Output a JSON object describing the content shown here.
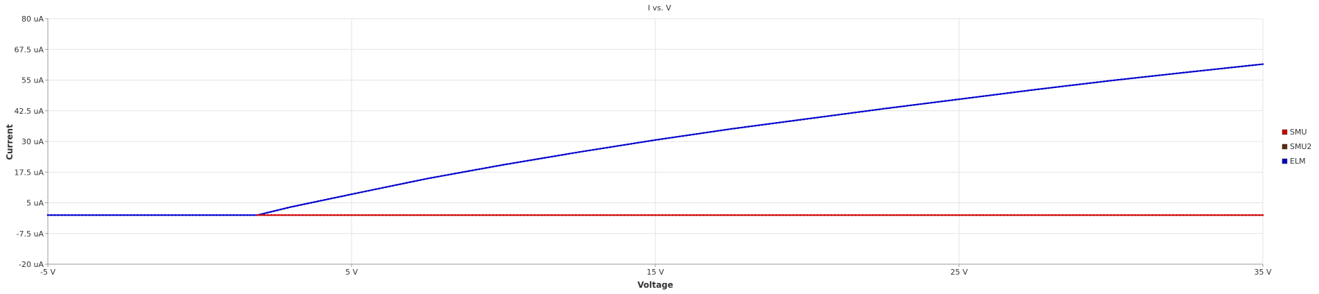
{
  "chart_data": {
    "type": "line",
    "title": "I vs. V",
    "xlabel": "Voltage",
    "ylabel": "Current",
    "xlim": [
      -5,
      35
    ],
    "ylim": [
      -20,
      80
    ],
    "x_ticks": [
      {
        "value": -5,
        "label": "-5 V"
      },
      {
        "value": 5,
        "label": "5 V"
      },
      {
        "value": 15,
        "label": "15 V"
      },
      {
        "value": 25,
        "label": "25 V"
      },
      {
        "value": 35,
        "label": "35 V"
      }
    ],
    "y_ticks": [
      {
        "value": 80,
        "label": "80 uA"
      },
      {
        "value": 67.5,
        "label": "67.5 uA"
      },
      {
        "value": 55,
        "label": "55 uA"
      },
      {
        "value": 42.5,
        "label": "42.5 uA"
      },
      {
        "value": 30,
        "label": "30 uA"
      },
      {
        "value": 17.5,
        "label": "17.5 uA"
      },
      {
        "value": 5,
        "label": "5 uA"
      },
      {
        "value": -7.5,
        "label": "-7.5 uA"
      },
      {
        "value": -20,
        "label": "-20 uA"
      }
    ],
    "grid": true,
    "legend_position": "right",
    "series": [
      {
        "name": "SMU",
        "color": "#cc0000",
        "x": [
          1.9,
          5,
          10,
          15,
          20,
          25,
          30,
          35
        ],
        "y": [
          0,
          0,
          0,
          0,
          0,
          0,
          0,
          0
        ]
      },
      {
        "name": "SMU2",
        "color": "#5a2a0a",
        "x": [],
        "y": []
      },
      {
        "name": "ELM",
        "color": "#0000cc",
        "x": [
          -5,
          0,
          1.9,
          3,
          5,
          7.5,
          10,
          12.5,
          15,
          17.5,
          20,
          22.5,
          25,
          27.5,
          30,
          32.5,
          35
        ],
        "y": [
          0,
          0,
          0,
          3.3,
          8.5,
          14.9,
          20.5,
          25.7,
          30.6,
          35.1,
          39.2,
          43.3,
          47.2,
          51.1,
          54.8,
          58.2,
          61.5
        ]
      }
    ]
  }
}
